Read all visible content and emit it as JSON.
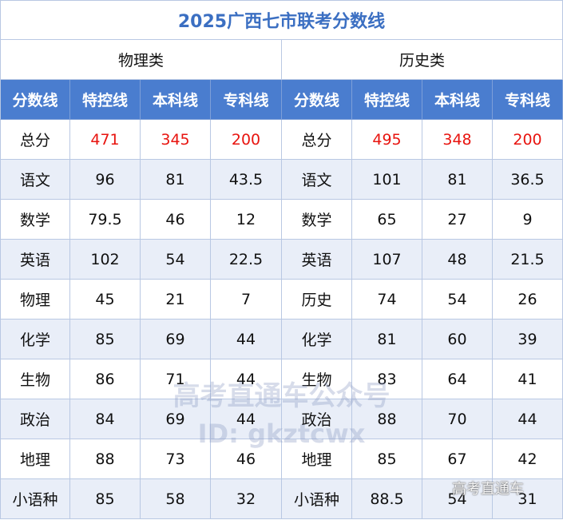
{
  "title": "2025广西七市联考分数线",
  "table": {
    "groups": [
      "物理类",
      "历史类"
    ],
    "header": [
      "分数线",
      "特控线",
      "本科线",
      "专科线",
      "分数线",
      "特控线",
      "本科线",
      "专科线"
    ],
    "rows": [
      [
        "总分",
        471,
        345,
        200,
        "总分",
        495,
        348,
        200
      ],
      [
        "语文",
        96,
        81,
        43.5,
        "语文",
        101,
        81,
        36.5
      ],
      [
        "数学",
        79.5,
        46,
        12,
        "数学",
        65,
        27,
        9
      ],
      [
        "英语",
        102,
        54,
        22.5,
        "英语",
        107,
        48,
        21.5
      ],
      [
        "物理",
        45,
        21,
        7,
        "历史",
        74,
        54,
        26
      ],
      [
        "化学",
        85,
        69,
        44,
        "化学",
        81,
        60,
        39
      ],
      [
        "生物",
        86,
        71,
        44,
        "生物",
        83,
        64,
        41
      ],
      [
        "政治",
        84,
        69,
        44,
        "政治",
        88,
        70,
        44
      ],
      [
        "地理",
        88,
        73,
        46,
        "地理",
        85,
        67,
        42
      ],
      [
        "小语种",
        85,
        58,
        32,
        "小语种",
        88.5,
        54,
        31
      ]
    ]
  },
  "watermark": {
    "name": "高考直通车公众号",
    "id": "ID: gkztcwx",
    "corner": "高考直通车"
  }
}
